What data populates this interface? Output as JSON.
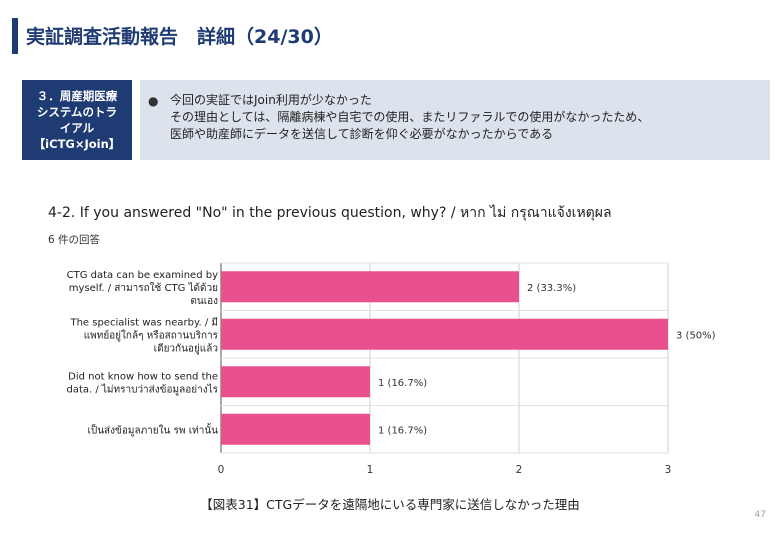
{
  "header": {
    "title": "実証調査活動報告　詳細（24/30）"
  },
  "section": {
    "label": "３．周産期医療\nシステムのトラ\nイアル\n【iCTG×Join】"
  },
  "note": {
    "bullet": "●",
    "lines": [
      "今回の実証ではJoin利用が少なかった",
      "その理由としては、隔離病棟や自宅での使用、またリファラルでの使用がなかったため、",
      "医師や助産師にデータを送信して診断を仰ぐ必要がなかったからである"
    ]
  },
  "question": {
    "title": "4-2. If you answered \"No\" in the previous question, why? / หาก ไม่ กรุณาแจ้งเหตุผล",
    "response_count": "6 件の回答"
  },
  "chart_data": {
    "type": "bar",
    "orientation": "horizontal",
    "categories": [
      [
        "CTG data can be examined by",
        "myself. / สามารถใช้ CTG ได้ด้วย",
        "ตนเอง"
      ],
      [
        "The specialist was nearby. / มี",
        "แพทย์อยู่ใกล้ๆ หรือสถานบริการ",
        "เดียวกันอยู่แล้ว"
      ],
      [
        "Did not know how to send the",
        "data. / ไม่ทราบว่าส่งข้อมูลอย่างไร"
      ],
      [
        "เป็นส่งข้อมูลภายใน รพ เท่านั้น"
      ]
    ],
    "values": [
      2,
      3,
      1,
      1
    ],
    "data_labels": [
      "2 (33.3%)",
      "3 (50%)",
      "1 (16.7%)",
      "1 (16.7%)"
    ],
    "xlim": [
      0,
      3
    ],
    "x_ticks": [
      "0",
      "1",
      "2",
      "3"
    ],
    "bar_color": "#e8508e",
    "grid": true
  },
  "caption": "【図表31】CTGデータを遠隔地にいる専門家に送信しなかった理由",
  "page_number": "47"
}
